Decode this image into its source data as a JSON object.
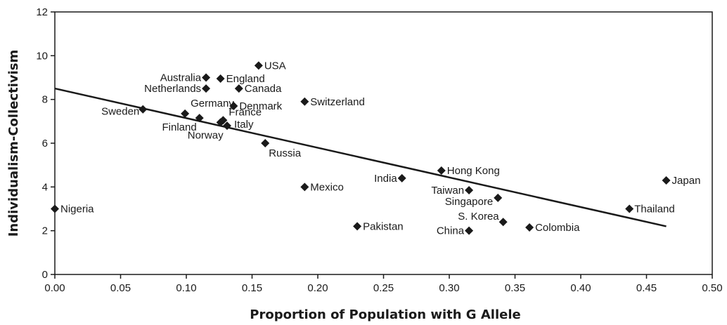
{
  "chart_data": {
    "type": "scatter",
    "title": "",
    "xlabel": "Proportion of Population with G Allele",
    "ylabel": "Individualism-Collectivism",
    "xlim": [
      0,
      0.5
    ],
    "ylim": [
      0,
      12
    ],
    "x_ticks": [
      0,
      0.05,
      0.1,
      0.15,
      0.2,
      0.25,
      0.3,
      0.35,
      0.4,
      0.45,
      0.5
    ],
    "x_tick_labels": [
      "0.00",
      "0.05",
      "0.10",
      "0.15",
      "0.20",
      "0.25",
      "0.30",
      "0.35",
      "0.40",
      "0.45",
      "0.50"
    ],
    "y_ticks": [
      0,
      2,
      4,
      6,
      8,
      10,
      12
    ],
    "y_tick_labels": [
      "0",
      "2",
      "4",
      "6",
      "8",
      "10",
      "12"
    ],
    "grid": false,
    "legend": "none",
    "marker": "diamond",
    "marker_color": "#1a1a1a",
    "points": [
      {
        "label": "Nigeria",
        "x": 0.0,
        "y": 3.0
      },
      {
        "label": "Sweden",
        "x": 0.067,
        "y": 7.55
      },
      {
        "label": "Germany",
        "x": 0.099,
        "y": 7.35
      },
      {
        "label": "Finland",
        "x": 0.11,
        "y": 7.15
      },
      {
        "label": "Australia",
        "x": 0.115,
        "y": 9.0
      },
      {
        "label": "Netherlands",
        "x": 0.115,
        "y": 8.5
      },
      {
        "label": "England",
        "x": 0.126,
        "y": 8.95
      },
      {
        "label": "Norway",
        "x": 0.126,
        "y": 6.95
      },
      {
        "label": "France",
        "x": 0.128,
        "y": 7.05
      },
      {
        "label": "Italy",
        "x": 0.131,
        "y": 6.8
      },
      {
        "label": "Denmark",
        "x": 0.136,
        "y": 7.7
      },
      {
        "label": "Canada",
        "x": 0.14,
        "y": 8.5
      },
      {
        "label": "USA",
        "x": 0.155,
        "y": 9.55
      },
      {
        "label": "Russia",
        "x": 0.16,
        "y": 6.0
      },
      {
        "label": "Switzerland",
        "x": 0.19,
        "y": 7.9
      },
      {
        "label": "Mexico",
        "x": 0.19,
        "y": 4.0
      },
      {
        "label": "Pakistan",
        "x": 0.23,
        "y": 2.2
      },
      {
        "label": "India",
        "x": 0.264,
        "y": 4.4
      },
      {
        "label": "Hong Kong",
        "x": 0.294,
        "y": 4.75
      },
      {
        "label": "Taiwan",
        "x": 0.315,
        "y": 3.85
      },
      {
        "label": "China",
        "x": 0.315,
        "y": 2.0
      },
      {
        "label": "Singapore",
        "x": 0.337,
        "y": 3.5
      },
      {
        "label": "S. Korea",
        "x": 0.341,
        "y": 2.4
      },
      {
        "label": "Colombia",
        "x": 0.361,
        "y": 2.15
      },
      {
        "label": "Thailand",
        "x": 0.437,
        "y": 3.0
      },
      {
        "label": "Japan",
        "x": 0.465,
        "y": 4.3
      }
    ],
    "trendline": {
      "x": [
        0.0,
        0.465
      ],
      "y": [
        8.5,
        2.2
      ]
    }
  }
}
